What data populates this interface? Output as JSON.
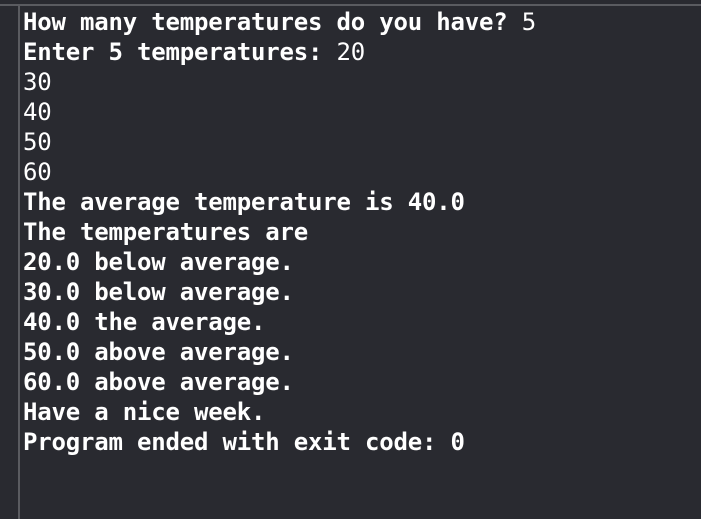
{
  "console": {
    "lines": [
      {
        "output": "How many temperatures do you have? ",
        "input": "5"
      },
      {
        "output": "Enter 5 temperatures: ",
        "input": "20"
      },
      {
        "input": "30"
      },
      {
        "input": "40"
      },
      {
        "input": "50"
      },
      {
        "input": "60"
      },
      {
        "output": "The average temperature is 40.0"
      },
      {
        "output": "The temperatures are"
      },
      {
        "output": "20.0 below average."
      },
      {
        "output": "30.0 below average."
      },
      {
        "output": "40.0 the average."
      },
      {
        "output": "50.0 above average."
      },
      {
        "output": "60.0 above average."
      },
      {
        "output": "Have a nice week."
      },
      {
        "output": "Program ended with exit code: 0"
      }
    ]
  }
}
